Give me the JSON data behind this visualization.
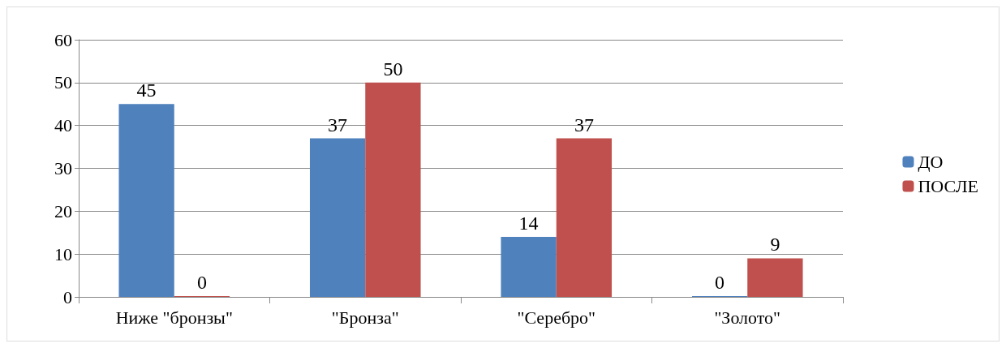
{
  "chart_data": {
    "type": "bar",
    "categories": [
      "Ниже \"бронзы\"",
      "\"Бронза\"",
      "\"Серебро\"",
      "\"Золото\""
    ],
    "series": [
      {
        "name": "ДО",
        "color": "#4f81bd",
        "values": [
          45,
          37,
          14,
          0
        ]
      },
      {
        "name": "ПОСЛЕ",
        "color": "#c0504d",
        "values": [
          0,
          50,
          37,
          9
        ]
      }
    ],
    "ylim": [
      0,
      60
    ],
    "yticks": [
      0,
      10,
      20,
      30,
      40,
      50,
      60
    ],
    "grid": "y",
    "legend": "right",
    "data_labels": true
  }
}
